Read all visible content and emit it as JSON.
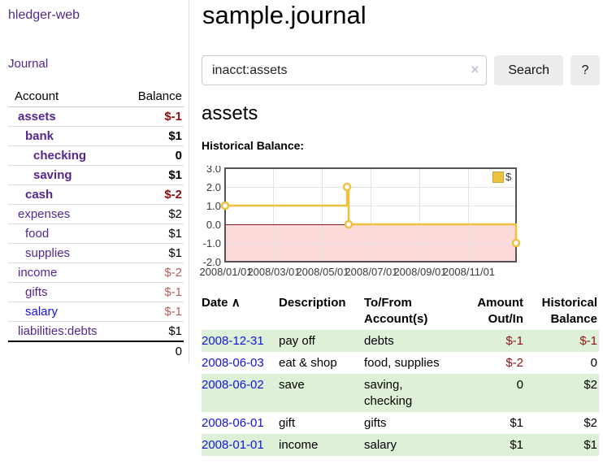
{
  "brand": "hledger-web",
  "nav": {
    "journal_label": "Journal"
  },
  "sidebar": {
    "headers": {
      "account": "Account",
      "balance": "Balance"
    },
    "accounts": [
      {
        "name": "assets",
        "balance": "$-1",
        "level": 0,
        "bold": true,
        "tone": "neg-strong",
        "link": "purple"
      },
      {
        "name": "bank",
        "balance": "$1",
        "level": 1,
        "bold": true,
        "tone": "plain",
        "link": "purple"
      },
      {
        "name": "checking",
        "balance": "0",
        "level": 2,
        "bold": true,
        "tone": "plain",
        "link": "purple"
      },
      {
        "name": "saving",
        "balance": "$1",
        "level": 2,
        "bold": true,
        "tone": "plain",
        "link": "purple"
      },
      {
        "name": "cash",
        "balance": "$-2",
        "level": 1,
        "bold": true,
        "tone": "neg-strong",
        "link": "purple"
      },
      {
        "name": "expenses",
        "balance": "$2",
        "level": 0,
        "bold": false,
        "tone": "plain",
        "link": "purple"
      },
      {
        "name": "food",
        "balance": "$1",
        "level": 1,
        "bold": false,
        "tone": "plain",
        "link": "purple"
      },
      {
        "name": "supplies",
        "balance": "$1",
        "level": 1,
        "bold": false,
        "tone": "plain",
        "link": "purple"
      },
      {
        "name": "income",
        "balance": "$-2",
        "level": 0,
        "bold": false,
        "tone": "neg-soft",
        "link": "purple"
      },
      {
        "name": "gifts",
        "balance": "$-1",
        "level": 1,
        "bold": false,
        "tone": "neg-soft",
        "link": "purple"
      },
      {
        "name": "salary",
        "balance": "$-1",
        "level": 1,
        "bold": false,
        "tone": "neg-soft",
        "link": "blue"
      },
      {
        "name": "liabilities:debts",
        "balance": "$1",
        "level": 0,
        "bold": false,
        "tone": "plain",
        "link": "purple"
      }
    ],
    "total": "0"
  },
  "main": {
    "title": "sample.journal",
    "search": {
      "value": "inacct:assets",
      "clear_icon": "×",
      "button_label": "Search",
      "help_label": "?"
    },
    "account_heading": "assets",
    "chart_label": "Historical Balance:"
  },
  "chart_data": {
    "type": "line",
    "step": true,
    "title": "Historical Balance",
    "series": [
      {
        "name": "$",
        "color": "#edc240",
        "points": [
          [
            "2008-01-01",
            1.0
          ],
          [
            "2008-06-01",
            2.0
          ],
          [
            "2008-06-03",
            0.0
          ],
          [
            "2008-12-31",
            -1.0
          ]
        ]
      }
    ],
    "ylim": [
      -2.0,
      3.0
    ],
    "y_tick_labels": [
      "3.0",
      "2.0",
      "1.0",
      "0.0",
      "-1.0",
      "-2.0"
    ],
    "x_tick_labels": [
      "2008/01/01",
      "2008/03/01",
      "2008/05/01",
      "2008/07/01",
      "2008/09/01",
      "2008/11/01"
    ],
    "legend": {
      "label": "$",
      "position": "top-right"
    },
    "grid": true,
    "negative_region_color": "#fcdada",
    "zero_line_color": "#8b1a1a"
  },
  "register": {
    "headers": {
      "date": "Date",
      "sort_indicator": "∧",
      "description": "Description",
      "account_lines": [
        "To/From",
        "Account(s)"
      ],
      "amount_lines": [
        "Amount",
        "Out/In"
      ],
      "balance_lines": [
        "Historical",
        "Balance"
      ]
    },
    "rows": [
      {
        "date": "2008-12-31",
        "description": "pay off",
        "accounts": "debts",
        "amount": "$-1",
        "balance": "$-1"
      },
      {
        "date": "2008-06-03",
        "description": "eat & shop",
        "accounts": "food, supplies",
        "amount": "$-2",
        "balance": "0"
      },
      {
        "date": "2008-06-02",
        "description": "save",
        "accounts": "saving, checking",
        "amount": "0",
        "balance": "$2"
      },
      {
        "date": "2008-06-01",
        "description": "gift",
        "accounts": "gifts",
        "amount": "$1",
        "balance": "$2"
      },
      {
        "date": "2008-01-01",
        "description": "income",
        "accounts": "salary",
        "amount": "$1",
        "balance": "$1"
      }
    ]
  },
  "colors": {
    "accent_purple": "#54278e",
    "link_blue": "#1414e0",
    "negative_strong": "#8b1010",
    "negative_soft": "#b2635f",
    "row_green": "#dff0d8",
    "series_gold": "#edc240"
  }
}
